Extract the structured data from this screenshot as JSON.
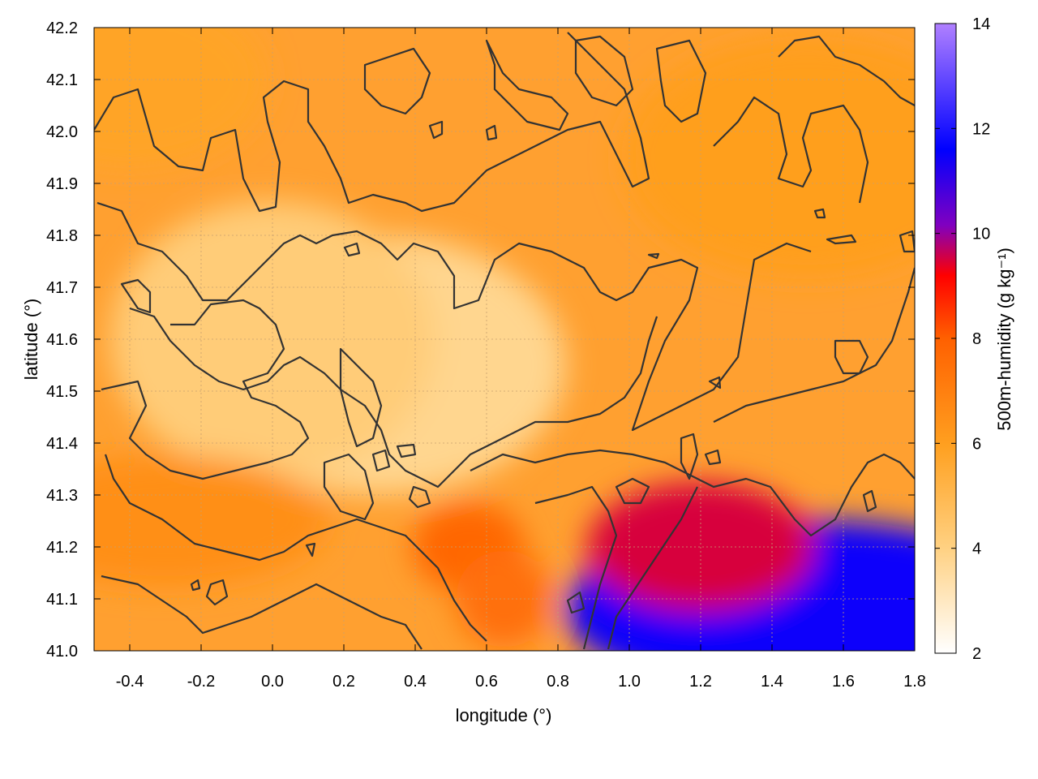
{
  "chart_data": {
    "type": "heatmap",
    "title": "",
    "xlabel": "longitude (°)",
    "ylabel": "latitude (°)",
    "colorbar_label": "500m-humidity (g kg⁻¹)",
    "xlim": [
      -0.5,
      1.8
    ],
    "ylim": [
      41.0,
      42.2
    ],
    "clim": [
      2,
      14
    ],
    "x_ticks": [
      "-0.4",
      "-0.2",
      "0.0",
      "0.2",
      "0.4",
      "0.6",
      "0.8",
      "1.0",
      "1.2",
      "1.4",
      "1.6",
      "1.8"
    ],
    "y_ticks": [
      "41.0",
      "41.1",
      "41.2",
      "41.3",
      "41.4",
      "41.5",
      "41.6",
      "41.7",
      "41.8",
      "41.9",
      "42.0",
      "42.1",
      "42.2"
    ],
    "colorbar_ticks": [
      "2",
      "4",
      "6",
      "8",
      "10",
      "12",
      "14"
    ],
    "grid": true,
    "colormap": [
      "#ffffff",
      "#ffd080",
      "#ffa020",
      "#ff6000",
      "#ff0000",
      "#8000c0",
      "#0000ff",
      "#b080ff"
    ],
    "contour_color": "#333333",
    "field_regions": [
      {
        "desc": "low humidity valley",
        "lon": 0.3,
        "lat": 41.55,
        "value": 3.8
      },
      {
        "desc": "central depression",
        "lon": 0.0,
        "lat": 41.6,
        "value": 4.2
      },
      {
        "desc": "north-west high",
        "lon": -0.4,
        "lat": 42.1,
        "value": 5.8
      },
      {
        "desc": "north-east high",
        "lon": 1.5,
        "lat": 41.95,
        "value": 6.0
      },
      {
        "desc": "south-west band",
        "lon": -0.3,
        "lat": 41.25,
        "value": 6.5
      },
      {
        "desc": "coastal moist air",
        "lon": 1.5,
        "lat": 41.08,
        "value": 11.5
      },
      {
        "desc": "coastal transition",
        "lon": 1.2,
        "lat": 41.2,
        "value": 9.5
      },
      {
        "desc": "ebro delta moist patch",
        "lon": 0.55,
        "lat": 41.2,
        "value": 7.8
      },
      {
        "desc": "southern moist patch",
        "lon": 0.65,
        "lat": 41.1,
        "value": 7.5
      }
    ]
  }
}
